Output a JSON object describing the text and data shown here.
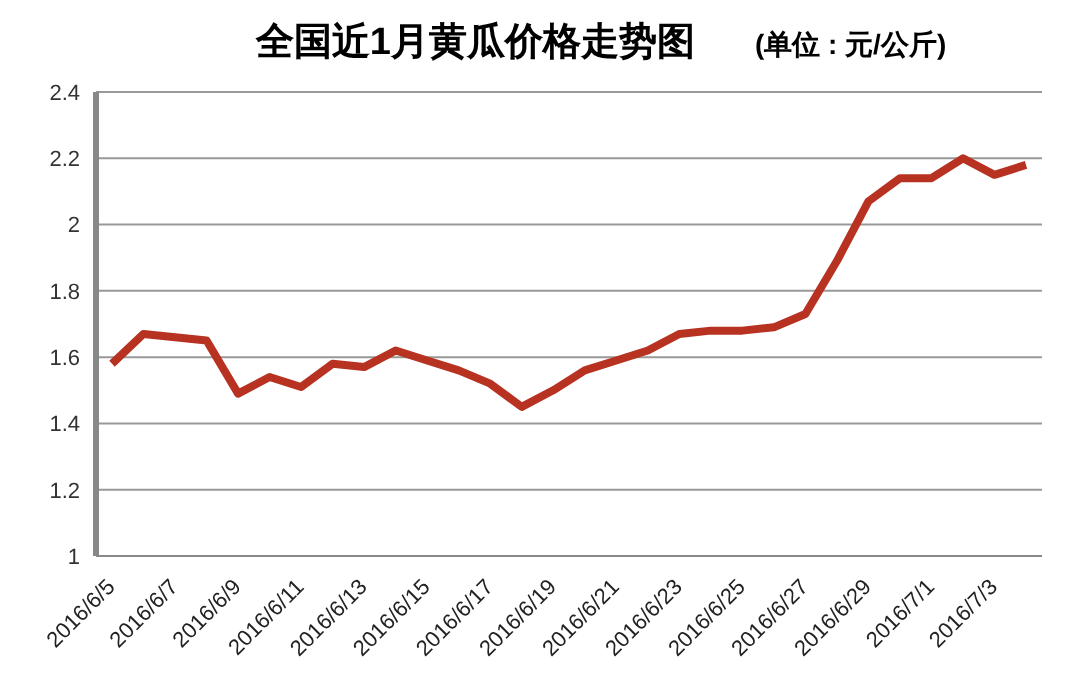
{
  "chart_data": {
    "type": "line",
    "title": "全国近1月黄瓜价格走势图",
    "subtitle": "(单位 : 元/公斤)",
    "categories": [
      "2016/6/5",
      null,
      "2016/6/7",
      null,
      "2016/6/9",
      null,
      "2016/6/11",
      null,
      "2016/6/13",
      null,
      "2016/6/15",
      null,
      "2016/6/17",
      null,
      "2016/6/19",
      null,
      "2016/6/21",
      null,
      "2016/6/23",
      null,
      "2016/6/25",
      null,
      "2016/6/27",
      null,
      "2016/6/29",
      null,
      "2016/7/1",
      null,
      "2016/7/3",
      null
    ],
    "series": [
      {
        "color": "#b83222",
        "values": [
          1.58,
          1.67,
          1.66,
          1.65,
          1.49,
          1.54,
          1.51,
          1.58,
          1.57,
          1.62,
          1.59,
          1.56,
          1.52,
          1.45,
          1.5,
          1.56,
          1.59,
          1.62,
          1.67,
          1.68,
          1.68,
          1.69,
          1.73,
          1.89,
          2.07,
          2.14,
          2.14,
          2.2,
          2.15,
          2.18
        ]
      }
    ],
    "ylim": [
      1,
      2.4
    ],
    "yticks": [
      1,
      1.2,
      1.4,
      1.6,
      1.8,
      2,
      2.2,
      2.4
    ],
    "grid": "y",
    "legend": false,
    "marker": "none",
    "line_style": "solid"
  }
}
